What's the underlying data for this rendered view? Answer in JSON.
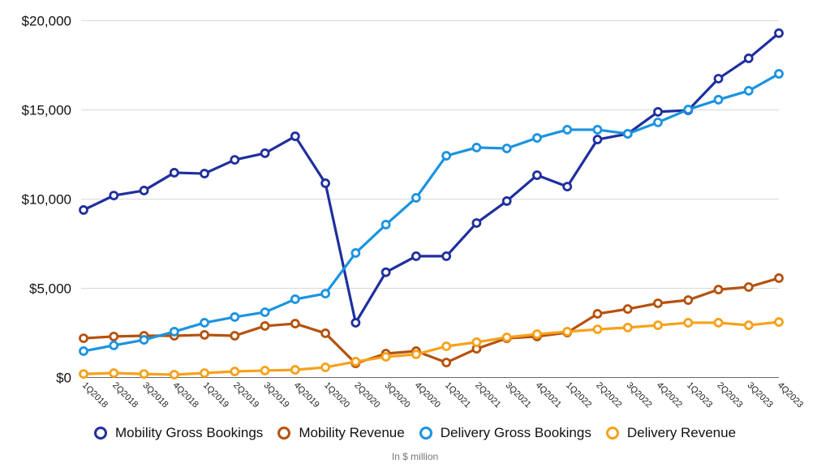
{
  "chart_data": {
    "type": "line",
    "title": "",
    "xlabel": "",
    "ylabel": "",
    "subtitle": "In $ million",
    "ylim": [
      0,
      20000
    ],
    "yticks": [
      0,
      5000,
      10000,
      15000,
      20000
    ],
    "ytick_labels": [
      "$0",
      "$5,000",
      "$10,000",
      "$15,000",
      "$20,000"
    ],
    "grid": true,
    "legend_position": "bottom",
    "categories": [
      "1Q2018",
      "2Q2018",
      "3Q2018",
      "4Q2018",
      "1Q2019",
      "2Q2019",
      "3Q2019",
      "4Q2019",
      "1Q2020",
      "2Q2020",
      "3Q2020",
      "4Q2020",
      "1Q2021",
      "2Q2021",
      "3Q2021",
      "4Q2021",
      "1Q2022",
      "2Q2022",
      "3Q2022",
      "4Q2022",
      "1Q2023",
      "2Q2023",
      "3Q2023",
      "4Q2023"
    ],
    "series": [
      {
        "name": "Mobility Gross Bookings",
        "color": "#1f2f9e",
        "values": [
          9390,
          10200,
          10480,
          11480,
          11430,
          12200,
          12570,
          13520,
          10890,
          3070,
          5900,
          6800,
          6800,
          8660,
          9890,
          11340,
          10700,
          13340,
          13660,
          14890,
          14980,
          16750,
          17890,
          19300
        ]
      },
      {
        "name": "Mobility Revenue",
        "color": "#b5520e",
        "values": [
          2200,
          2300,
          2340,
          2340,
          2390,
          2340,
          2890,
          3020,
          2480,
          790,
          1340,
          1480,
          840,
          1610,
          2200,
          2300,
          2520,
          3570,
          3840,
          4160,
          4340,
          4930,
          5070,
          5570
        ]
      },
      {
        "name": "Delivery Gross Bookings",
        "color": "#1b93e0",
        "values": [
          1480,
          1800,
          2110,
          2570,
          3070,
          3390,
          3660,
          4390,
          4700,
          6980,
          8570,
          10070,
          12430,
          12890,
          12840,
          13430,
          13890,
          13890,
          13660,
          14300,
          15020,
          15570,
          16070,
          17020
        ]
      },
      {
        "name": "Delivery Revenue",
        "color": "#f7a11a",
        "values": [
          200,
          250,
          200,
          160,
          250,
          340,
          390,
          430,
          570,
          890,
          1160,
          1300,
          1750,
          1980,
          2250,
          2430,
          2570,
          2700,
          2800,
          2930,
          3070,
          3070,
          2930,
          3110
        ]
      }
    ]
  }
}
